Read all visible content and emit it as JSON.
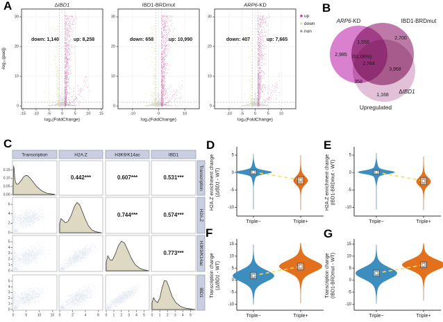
{
  "panel_labels": {
    "a": "A",
    "b": "B",
    "c": "C",
    "d": "D",
    "e": "E",
    "f": "F",
    "g": "G"
  },
  "chart_data": [
    {
      "type": "scatter",
      "id": "volcano_panels",
      "ylabel": "-log₁₀(padj)",
      "xlabel": "log₂(FoldChange)",
      "legend": [
        {
          "label": "up",
          "color": "#c0398c"
        },
        {
          "label": "down",
          "color": "#dfe0a6"
        },
        {
          "label": "non",
          "color": "#9d9d9d"
        }
      ],
      "point_colors": {
        "up": "#c0398c",
        "down": "#dfe0a6",
        "non": "#9d9d9d"
      },
      "plots": [
        {
          "title": [
            {
              "t": "Δ",
              "i": 0
            },
            {
              "t": "IBD1",
              "i": 1
            }
          ],
          "down_label": "down: 1,140",
          "up_label": "up: 8,258",
          "xlim": [
            -15.3,
            15.3
          ],
          "xticks": [
            -15,
            -10,
            -5,
            0,
            5,
            10,
            15
          ],
          "ylim": [
            0,
            30
          ],
          "yticks": [
            0,
            10,
            20,
            30
          ],
          "fc_threshold": 1,
          "padj_line": 1.3
        },
        {
          "title": [
            {
              "t": "IBD1-BRDmut",
              "i": 0
            }
          ],
          "down_label": "down: 658",
          "up_label": "up: 10,990",
          "xlim": [
            -15.3,
            15.3
          ],
          "xticks": [
            -10,
            0,
            10
          ],
          "ylim": [
            0,
            30
          ],
          "yticks": [
            0,
            10,
            20,
            30
          ],
          "fc_threshold": 1,
          "padj_line": 1.3
        },
        {
          "title": [
            {
              "t": "ARP6",
              "i": 1
            },
            {
              "t": "-KD",
              "i": 0
            }
          ],
          "down_label": "down: 407",
          "up_label": "up: 7,665",
          "xlim": [
            -15.3,
            15.3
          ],
          "xticks": [
            -10,
            -5,
            0,
            5,
            10
          ],
          "ylim": [
            0,
            30
          ],
          "yticks": [
            0,
            10,
            20,
            30
          ],
          "fc_threshold": 1,
          "padj_line": 1.3
        }
      ]
    },
    {
      "type": "venn",
      "id": "venn_upregulated",
      "caption": "Upregulated",
      "sets": [
        {
          "label": [
            {
              "t": "ARP6",
              "i": 1
            },
            {
              "t": "-KD",
              "i": 0
            }
          ],
          "color": "#d981cf"
        },
        {
          "label": [
            {
              "t": "IBD1-BRDmut",
              "i": 0
            }
          ],
          "color": "#bd79a7"
        },
        {
          "label": [
            {
              "t": "Δ",
              "i": 0
            },
            {
              "t": "IBD1",
              "i": 1
            }
          ],
          "color": "#e2c0d8"
        }
      ],
      "regions": {
        "arp6_only": "2,985",
        "brdmut_only": "2,700",
        "dibd1_only": "1,168",
        "arp6_brdmut": "1,558",
        "brdmut_dibd1": "3,968",
        "arp6_dibd1": "358",
        "all_three": "2,764",
        "all_three_pct": "(61.06%)"
      }
    },
    {
      "type": "scatter-matrix",
      "id": "correlation_matrix",
      "variables": [
        "Transcription",
        "H2A.Z",
        "H3K9/K14ac",
        "IBD1"
      ],
      "correlations": [
        [
          "",
          "0.442***",
          "0.607***",
          "0.531***"
        ],
        [
          "",
          "",
          "0.744***",
          "0.574***"
        ],
        [
          "",
          "",
          "",
          "0.773***"
        ],
        [
          "",
          "",
          "",
          ""
        ]
      ],
      "col_xlim": [
        16.5,
        6.6,
        5.6,
        5.6
      ],
      "col_xticks": [
        [
          "0",
          "5",
          "10",
          "15"
        ],
        [
          "0",
          "2",
          "4",
          "6"
        ],
        [
          "0",
          "1",
          "2",
          "3",
          "4",
          "5"
        ],
        [
          "0",
          "1",
          "2",
          "3",
          "4",
          "5"
        ]
      ],
      "row_ylim": [
        0.19,
        6.9,
        5.6,
        5.6
      ],
      "row_yticks": [
        [
          "0.00",
          "0.05",
          "0.10",
          "0.15"
        ],
        [
          "0",
          "2",
          "4",
          "6"
        ],
        [
          "0",
          "1",
          "2",
          "3",
          "4",
          "5"
        ],
        [
          "0",
          "1",
          "2",
          "3",
          "4",
          "5"
        ]
      ],
      "densities": [
        {
          "x": [
            0,
            0.15,
            0.35,
            0.6,
            0.9,
            1.3,
            2,
            3,
            4,
            4.8,
            5.6,
            6.5,
            7.5,
            9,
            11,
            13,
            16
          ],
          "y": [
            0.04,
            0.175,
            0.16,
            0.1,
            0.075,
            0.063,
            0.065,
            0.085,
            0.108,
            0.117,
            0.115,
            0.1,
            0.08,
            0.05,
            0.022,
            0.008,
            0.001
          ]
        },
        {
          "x": [
            0,
            0.2,
            0.5,
            0.9,
            1.3,
            1.8,
            2.3,
            2.7,
            3.1,
            3.5,
            4,
            4.5,
            5,
            5.6,
            6.5
          ],
          "y": [
            1.9,
            3.0,
            2.6,
            2.1,
            2.4,
            3.7,
            5.6,
            6.4,
            5.9,
            4.6,
            2.8,
            1.4,
            0.6,
            0.2,
            0
          ]
        },
        {
          "x": [
            0,
            0.2,
            0.5,
            0.8,
            1.2,
            1.6,
            2.0,
            2.4,
            2.8,
            3.3,
            3.8,
            4.4,
            5,
            5.6
          ],
          "y": [
            1.4,
            2.6,
            1.9,
            1.8,
            2.9,
            4.3,
            5.1,
            4.8,
            3.7,
            2.2,
            1.1,
            0.45,
            0.15,
            0
          ]
        },
        {
          "x": [
            0,
            0.2,
            0.45,
            0.7,
            1.0,
            1.3,
            1.6,
            1.9,
            2.2,
            2.6,
            3.1,
            3.7,
            4.4,
            5.1,
            5.6
          ],
          "y": [
            1.2,
            2.1,
            1.5,
            1.2,
            2.0,
            3.8,
            5.1,
            5.0,
            3.9,
            2.3,
            1.2,
            0.55,
            0.22,
            0.08,
            0
          ]
        }
      ],
      "scatter_cells": [
        {
          "row": 1,
          "col": 0,
          "mx": 5.6,
          "my": 2.8,
          "sx": 3.0,
          "sy": 0.85,
          "rho": 0.35,
          "corner": 0.1,
          "edge": 0.1
        },
        {
          "row": 2,
          "col": 0,
          "mx": 5.6,
          "my": 2.3,
          "sx": 3.0,
          "sy": 0.8,
          "rho": 0.5,
          "corner": 0.12,
          "edge": 0.08
        },
        {
          "row": 3,
          "col": 0,
          "mx": 5.6,
          "my": 1.95,
          "sx": 3.0,
          "sy": 0.75,
          "rho": 0.45,
          "corner": 0.1,
          "edge": 0.08
        },
        {
          "row": 2,
          "col": 1,
          "mx": 2.9,
          "my": 2.25,
          "sx": 1.15,
          "sy": 0.85,
          "rho": 0.78,
          "corner": 0.16,
          "edge": 0
        },
        {
          "row": 3,
          "col": 1,
          "mx": 2.9,
          "my": 1.95,
          "sx": 1.15,
          "sy": 0.8,
          "rho": 0.62,
          "corner": 0.12,
          "edge": 0
        },
        {
          "row": 3,
          "col": 2,
          "mx": 2.15,
          "my": 1.95,
          "sx": 0.95,
          "sy": 0.8,
          "rho": 0.86,
          "corner": 0.16,
          "edge": 0
        }
      ],
      "header_color": "#c9cee0",
      "density_fill": "#ded9c2",
      "point_color": "#2f5496"
    },
    {
      "type": "violin",
      "id": "violin_panels",
      "group_labels": [
        "Triple−",
        "Triple+"
      ],
      "colors": {
        "triple_minus": "#3d8ebf",
        "triple_plus": "#e2701c",
        "connector": "#f2df5a"
      },
      "panels": [
        {
          "id": "D",
          "ylabel_line1": "H2A.Z enrichment change",
          "ylabel_line2": [
            {
              "t": "(",
              "i": 0
            },
            {
              "t": "Δ",
              "i": 0
            },
            {
              "t": "IBD1",
              "i": 1
            },
            {
              "t": " - WT)",
              "i": 0
            }
          ],
          "ylim": [
            -12.5,
            6.8
          ],
          "yticks": [
            5,
            0,
            -5,
            -10
          ],
          "groups": [
            {
              "label": "Triple−",
              "median": 0.15,
              "q1": -0.55,
              "q3": 0.7,
              "range": [
                -10.6,
                5.4
              ],
              "shape": [
                [
                  0.1,
                  0.5,
                  23
                ],
                [
                  0.1,
                  1.9,
                  4
                ]
              ]
            },
            {
              "label": "Triple+",
              "median": -2.1,
              "q1": -3.3,
              "q3": -1.2,
              "range": [
                -10.8,
                5.0
              ],
              "shape": [
                [
                  -2.3,
                  1.15,
                  9
                ],
                [
                  -2.0,
                  3.0,
                  1.5
                ]
              ]
            }
          ]
        },
        {
          "id": "E",
          "ylabel_line1": "H2A.Z enrichment change",
          "ylabel_line2": [
            {
              "t": "(IBD1-BRDmut - WT)",
              "i": 0
            }
          ],
          "ylim": [
            -12.5,
            6.8
          ],
          "yticks": [
            5,
            0,
            -5,
            -10
          ],
          "groups": [
            {
              "label": "Triple−",
              "median": 0.1,
              "q1": -0.5,
              "q3": 0.65,
              "range": [
                -10.6,
                5.6
              ],
              "shape": [
                [
                  0.1,
                  0.5,
                  23
                ],
                [
                  0.1,
                  1.9,
                  4
                ]
              ]
            },
            {
              "label": "Triple+",
              "median": -2.4,
              "q1": -3.5,
              "q3": -1.4,
              "range": [
                -10.8,
                4.6
              ],
              "shape": [
                [
                  -2.6,
                  1.15,
                  9
                ],
                [
                  -2.3,
                  3.0,
                  1.5
                ]
              ]
            }
          ]
        },
        {
          "id": "F",
          "ylabel_line1": "Transcription change",
          "ylabel_line2": [
            {
              "t": "(",
              "i": 0
            },
            {
              "t": "Δ",
              "i": 0
            },
            {
              "t": "IBD1",
              "i": 1
            },
            {
              "t": " - WT)",
              "i": 0
            }
          ],
          "ylim": [
            -12.5,
            16.3
          ],
          "yticks": [
            15,
            10,
            5,
            0,
            -5,
            -10
          ],
          "groups": [
            {
              "label": "Triple−",
              "median": 1.9,
              "q1": 0.6,
              "q3": 3.3,
              "range": [
                -10.2,
                14.8
              ],
              "shape": [
                [
                  1.8,
                  2.3,
                  26
                ],
                [
                  1.6,
                  4.8,
                  4
                ]
              ]
            },
            {
              "label": "Triple+",
              "median": 5.7,
              "q1": 4.2,
              "q3": 7.1,
              "range": [
                -9.5,
                15.5
              ],
              "shape": [
                [
                  5.8,
                  2.3,
                  27
                ],
                [
                  5.6,
                  4.8,
                  4
                ]
              ]
            }
          ]
        },
        {
          "id": "G",
          "ylabel_line1": "Transcription change",
          "ylabel_line2": [
            {
              "t": "(IBD1-BRDmut - WT)",
              "i": 0
            }
          ],
          "ylim": [
            -12.5,
            16.3
          ],
          "yticks": [
            15,
            10,
            5,
            0,
            -5,
            -10
          ],
          "groups": [
            {
              "label": "Triple−",
              "median": 2.9,
              "q1": 1.6,
              "q3": 4.2,
              "range": [
                -9.8,
                14.8
              ],
              "shape": [
                [
                  2.9,
                  2.3,
                  26
                ],
                [
                  2.6,
                  4.8,
                  4
                ]
              ]
            },
            {
              "label": "Triple+",
              "median": 6.4,
              "q1": 5.2,
              "q3": 7.6,
              "range": [
                -8.5,
                15.3
              ],
              "shape": [
                [
                  6.4,
                  2.1,
                  27
                ],
                [
                  6.2,
                  4.4,
                  4
                ]
              ]
            }
          ]
        }
      ]
    }
  ]
}
